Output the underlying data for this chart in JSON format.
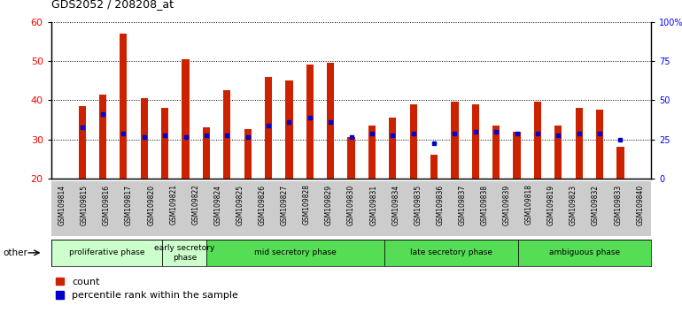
{
  "title": "GDS2052 / 208208_at",
  "samples": [
    "GSM109814",
    "GSM109815",
    "GSM109816",
    "GSM109817",
    "GSM109820",
    "GSM109821",
    "GSM109822",
    "GSM109824",
    "GSM109825",
    "GSM109826",
    "GSM109827",
    "GSM109828",
    "GSM109829",
    "GSM109830",
    "GSM109831",
    "GSM109834",
    "GSM109835",
    "GSM109836",
    "GSM109837",
    "GSM109838",
    "GSM109839",
    "GSM109818",
    "GSM109819",
    "GSM109823",
    "GSM109832",
    "GSM109833",
    "GSM109840"
  ],
  "count_values": [
    38.5,
    41.5,
    57.0,
    40.5,
    38.0,
    50.5,
    33.0,
    42.5,
    32.5,
    46.0,
    45.0,
    49.0,
    49.5,
    30.5,
    33.5,
    35.5,
    39.0,
    26.0,
    39.5,
    39.0,
    33.5,
    32.0,
    39.5,
    33.5,
    38.0,
    37.5,
    28.0
  ],
  "percentile_values": [
    33.0,
    36.5,
    31.5,
    30.5,
    31.0,
    30.5,
    31.0,
    31.0,
    30.5,
    33.5,
    34.5,
    35.5,
    34.5,
    30.5,
    31.5,
    31.0,
    31.5,
    29.0,
    31.5,
    32.0,
    32.0,
    31.5,
    31.5,
    31.0,
    31.5,
    31.5,
    30.0
  ],
  "phases": [
    {
      "label": "proliferative phase",
      "start": 0,
      "end": 5,
      "color": "#ccffcc"
    },
    {
      "label": "early secretory\nphase",
      "start": 5,
      "end": 7,
      "color": "#ccffcc"
    },
    {
      "label": "mid secretory phase",
      "start": 7,
      "end": 15,
      "color": "#55dd55"
    },
    {
      "label": "late secretory phase",
      "start": 15,
      "end": 21,
      "color": "#55dd55"
    },
    {
      "label": "ambiguous phase",
      "start": 21,
      "end": 27,
      "color": "#55dd55"
    }
  ],
  "ylim_left": [
    20,
    60
  ],
  "ylim_right": [
    0,
    100
  ],
  "yticks_left": [
    20,
    30,
    40,
    50,
    60
  ],
  "yticks_right": [
    0,
    25,
    50,
    75,
    100
  ],
  "ytick_labels_right": [
    "0",
    "25",
    "50",
    "75",
    "100%"
  ],
  "bar_color": "#cc2200",
  "percentile_color": "#0000cc",
  "bar_width": 0.35,
  "plot_bg": "#ffffff",
  "label_bg": "#cccccc",
  "title_fontsize": 9
}
